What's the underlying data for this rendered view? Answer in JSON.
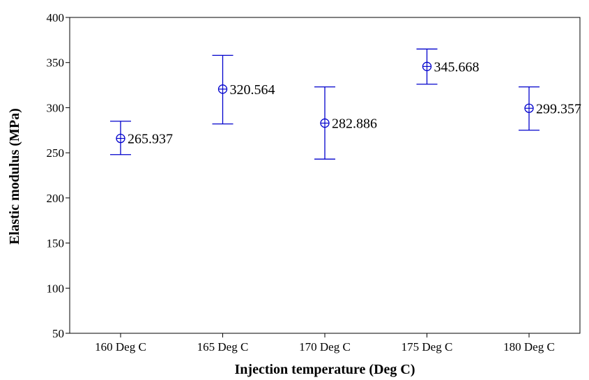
{
  "chart_data": {
    "type": "scatter",
    "title": "",
    "xlabel": "Injection temperature (Deg C)",
    "ylabel": "Elastic modulus (MPa)",
    "categories": [
      "160 Deg C",
      "165 Deg C",
      "170 Deg C",
      "175 Deg C",
      "180 Deg C"
    ],
    "values": [
      265.937,
      320.564,
      282.886,
      345.668,
      299.357
    ],
    "value_labels": [
      "265.937",
      "320.564",
      "282.886",
      "345.668",
      "299.357"
    ],
    "error_low": [
      248,
      282,
      243,
      326,
      275
    ],
    "error_high": [
      285,
      358,
      323,
      365,
      323
    ],
    "ylim": [
      50,
      400
    ],
    "yticks": [
      50,
      100,
      150,
      200,
      250,
      300,
      350,
      400
    ],
    "ytick_labels": [
      "50",
      "100",
      "150",
      "200",
      "250",
      "300",
      "350",
      "400"
    ],
    "grid": false,
    "marker": "circle-plus",
    "series_color": "#0000cc",
    "axis_color": "#000000"
  }
}
